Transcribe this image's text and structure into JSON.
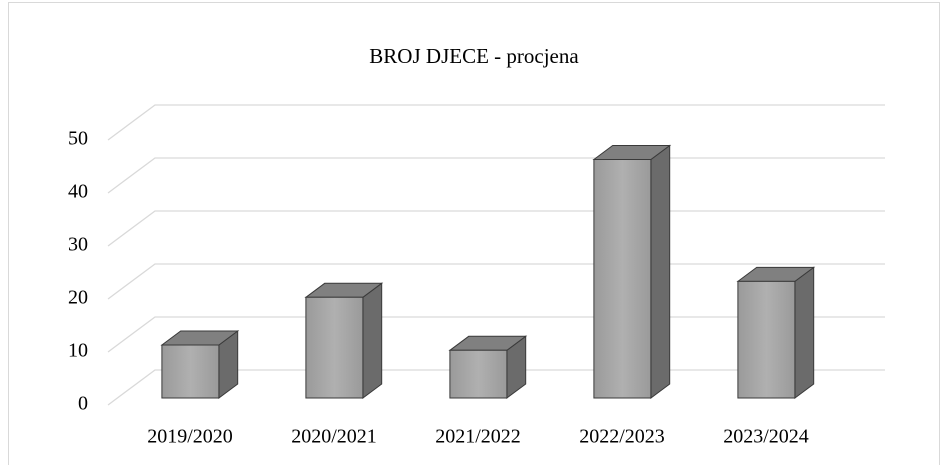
{
  "chart_data": {
    "type": "bar3d",
    "title": "BROJ DJECE - procjena",
    "categories": [
      "2019/2020",
      "2020/2021",
      "2021/2022",
      "2022/2023",
      "2023/2024"
    ],
    "values": [
      10,
      19,
      9,
      45,
      22
    ],
    "color": "#a6a6a6",
    "ylim": [
      0,
      50
    ],
    "yticks": [
      0,
      10,
      20,
      30,
      40,
      50
    ],
    "grid": true
  }
}
